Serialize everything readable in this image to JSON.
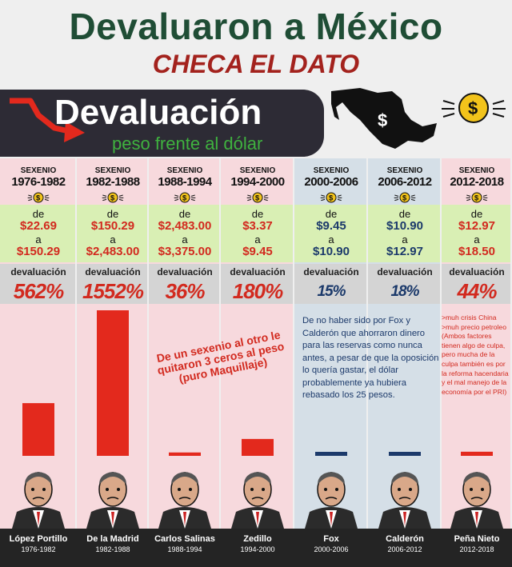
{
  "header": {
    "title": "Devaluaron a México",
    "subtitle": "CHECA EL DATO",
    "panel_title": "Devaluación",
    "panel_subtitle": "peso frente al dólar"
  },
  "labels": {
    "sexenio": "SEXENIO",
    "de": "de",
    "a": "a",
    "devaluacion": "devaluación"
  },
  "colors": {
    "pink_bg": "#f7d9dd",
    "blue_bg": "#d5dfe7",
    "green_band": "#d9efb4",
    "grey_band": "#d4d4d4",
    "bar_red": "#e3291d",
    "bar_navy": "#1c3a6b",
    "title_green": "#1f4d35",
    "subtitle_red": "#a3221d"
  },
  "chart_data": {
    "type": "bar",
    "categories": [
      "1976-1982",
      "1982-1988",
      "1988-1994",
      "1994-2000",
      "2000-2006",
      "2006-2012",
      "2012-2018"
    ],
    "series": [
      {
        "name": "devaluación",
        "values": [
          562,
          1552,
          36,
          180,
          15,
          18,
          44
        ]
      }
    ],
    "ylim": [
      0,
      1552
    ]
  },
  "sexenios": [
    {
      "years": "1976-1982",
      "from": "$22.69",
      "to": "$150.29",
      "pct": "562%",
      "tone": "red",
      "president": "López Portillo"
    },
    {
      "years": "1982-1988",
      "from": "$150.29",
      "to": "$2,483.00",
      "pct": "1552%",
      "tone": "red",
      "president": "De la Madrid"
    },
    {
      "years": "1988-1994",
      "from": "$2,483.00",
      "to": "$3,375.00",
      "pct": "36%",
      "tone": "red",
      "president": "Carlos Salinas"
    },
    {
      "years": "1994-2000",
      "from": "$3.37",
      "to": "$9.45",
      "pct": "180%",
      "tone": "red",
      "president": "Zedillo"
    },
    {
      "years": "2000-2006",
      "from": "$9.45",
      "to": "$10.90",
      "pct": "15%",
      "tone": "navy",
      "president": "Fox"
    },
    {
      "years": "2006-2012",
      "from": "$10.90",
      "to": "$12.97",
      "pct": "18%",
      "tone": "navy",
      "president": "Calderón"
    },
    {
      "years": "2012-2018",
      "from": "$12.97",
      "to": "$18.50",
      "pct": "44%",
      "tone": "red",
      "president": "Peña Nieto"
    }
  ],
  "notes": {
    "mid": "De un sexenio al otro le quitaron 3 ceros al peso (puro Maquillaje)",
    "fox": "De no haber sido por Fox y Calderón que ahorraron dinero para las reservas como nunca antes, a pesar de que la oposición lo quería gastar, el dólar probablemente ya hubiera rebasado los 25 pesos.",
    "pena": ">muh crisis China >muh precio petroleo (Ambos factores tienen algo de culpa, pero mucha de la culpa también es por la reforma hacendaria y el mal manejo de la economía por el PRI)"
  }
}
